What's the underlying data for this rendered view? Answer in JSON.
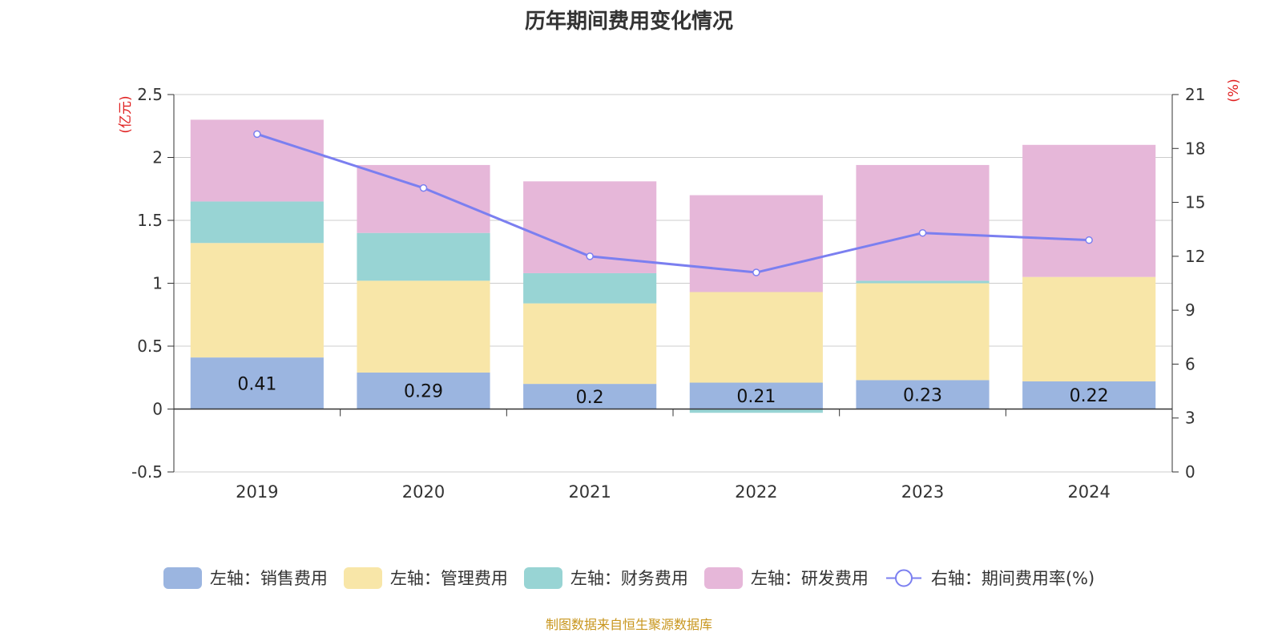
{
  "chart_data": {
    "type": "bar",
    "title": "历年期间费用变化情况",
    "categories": [
      "2019",
      "2020",
      "2021",
      "2022",
      "2023",
      "2024"
    ],
    "left_axis": {
      "unit_label": "(亿元)",
      "ylim": [
        -0.5,
        2.5
      ],
      "ticks": [
        "-0.5",
        "0",
        "0.5",
        "1",
        "1.5",
        "2",
        "2.5"
      ]
    },
    "right_axis": {
      "unit_label": "(%)",
      "ylim": [
        0,
        21
      ],
      "ticks": [
        "0",
        "3",
        "6",
        "9",
        "12",
        "15",
        "18",
        "21"
      ]
    },
    "stacked": true,
    "grid": true,
    "legend_position": "bottom",
    "series": [
      {
        "name": "左轴：销售费用",
        "axis": "left",
        "type": "bar",
        "color": "#9bb5e0",
        "values": [
          0.41,
          0.29,
          0.2,
          0.21,
          0.23,
          0.22
        ],
        "data_labels": [
          "0.41",
          "0.29",
          "0.2",
          "0.21",
          "0.23",
          "0.22"
        ]
      },
      {
        "name": "左轴：管理费用",
        "axis": "left",
        "type": "bar",
        "color": "#f8e6a8",
        "values": [
          0.91,
          0.73,
          0.64,
          0.72,
          0.77,
          0.83
        ]
      },
      {
        "name": "左轴：财务费用",
        "axis": "left",
        "type": "bar",
        "color": "#98d4d4",
        "values": [
          0.33,
          0.38,
          0.24,
          -0.03,
          0.02,
          0.0
        ]
      },
      {
        "name": "左轴：研发费用",
        "axis": "left",
        "type": "bar",
        "color": "#e6b7d9",
        "values": [
          0.65,
          0.54,
          0.73,
          0.77,
          0.92,
          1.05
        ]
      },
      {
        "name": "右轴：期间费用率(%)",
        "axis": "right",
        "type": "line",
        "color": "#7b7ff0",
        "values": [
          18.8,
          15.8,
          12.0,
          11.1,
          13.3,
          12.9
        ]
      }
    ]
  },
  "source_note": "制图数据来自恒生聚源数据库"
}
